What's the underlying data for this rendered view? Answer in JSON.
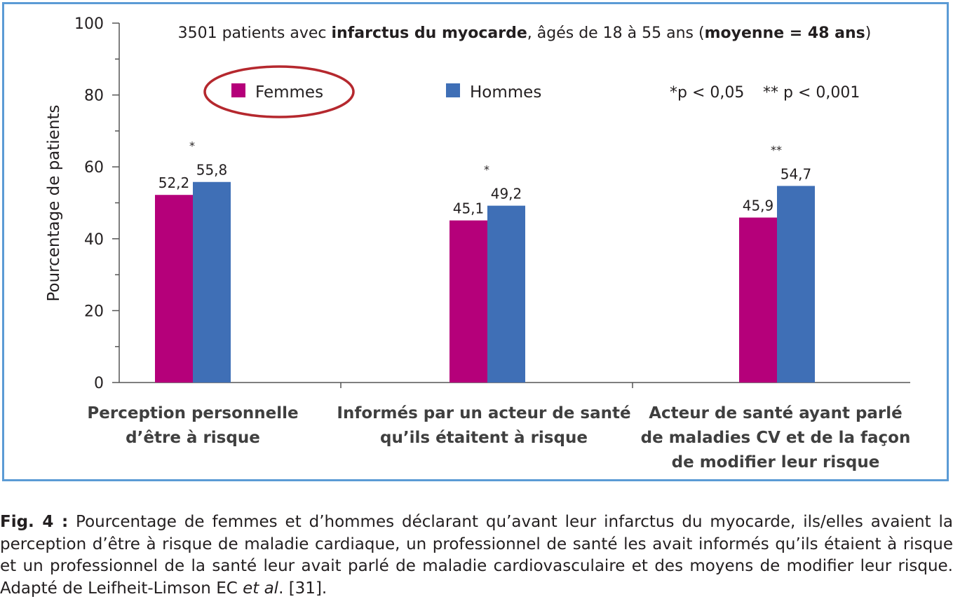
{
  "chart_data": {
    "type": "bar",
    "title": {
      "parts": [
        {
          "text": "3501 patients avec ",
          "bold": false
        },
        {
          "text": "infarctus du myocarde",
          "bold": true
        },
        {
          "text": ", âgés de 18 à 55 ans (",
          "bold": false
        },
        {
          "text": "moyenne = 48 ans",
          "bold": true
        },
        {
          "text": ")",
          "bold": false
        }
      ]
    },
    "ylabel": "Pourcentage de patients",
    "xlabel": "",
    "ylim": [
      0,
      100
    ],
    "yticks": [
      "0",
      "20",
      "40",
      "60",
      "80",
      "100"
    ],
    "ytick_values": [
      0,
      20,
      40,
      60,
      80,
      100
    ],
    "categories": [
      [
        "Perception personnelle",
        "d’être à risque"
      ],
      [
        "Informés par un acteur de santé",
        "qu’ils étaitent à risque"
      ],
      [
        "Acteur de santé ayant parlé",
        "de maladies CV et de la façon",
        "de modifier leur risque"
      ]
    ],
    "series": [
      {
        "name": "Femmes",
        "color": "#b5007a",
        "values": [
          52.2,
          45.1,
          45.9
        ],
        "labels": [
          "52,2",
          "45,1",
          "45,9"
        ]
      },
      {
        "name": "Hommes",
        "color": "#3f6fb6",
        "values": [
          55.8,
          49.2,
          54.7
        ],
        "labels": [
          "55,8",
          "49,2",
          "54,7"
        ]
      }
    ],
    "significance": [
      "*",
      "*",
      "**"
    ],
    "legend": {
      "position": "top",
      "highlight_color": "#b5282e",
      "highlighted": "Femmes"
    },
    "significance_note": [
      "*p < 0,05",
      "** p < 0,001"
    ],
    "grid": false
  },
  "caption": {
    "label": "Fig. 4 :",
    "text": " Pourcentage de femmes et d’hommes déclarant qu’avant leur infarctus du myocarde, ils/elles avaient la perception d’être à risque de maladie cardiaque, un professionnel de santé les avait informés qu’ils étaient à risque et un professionnel de la santé leur avait parlé de maladie cardiovasculaire et des moyens de modifier leur risque. Adapté de Leifheit-Limson EC ",
    "italic": "et al",
    "tail": ". [31]."
  }
}
